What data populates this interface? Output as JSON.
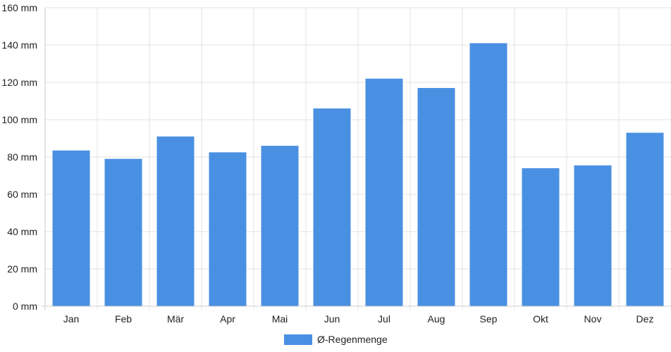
{
  "chart_data": {
    "type": "bar",
    "categories": [
      "Jan",
      "Feb",
      "Mär",
      "Apr",
      "Mai",
      "Jun",
      "Jul",
      "Aug",
      "Sep",
      "Okt",
      "Nov",
      "Dez"
    ],
    "series": [
      {
        "name": "Ø-Regenmenge",
        "color": "#4a90e2",
        "values": [
          83.5,
          79,
          91,
          82.5,
          86,
          106,
          122,
          117,
          141,
          74,
          75.5,
          93
        ]
      }
    ],
    "y_ticks": [
      0,
      20,
      40,
      60,
      80,
      100,
      120,
      140,
      160
    ],
    "y_tick_suffix": " mm",
    "ylim": [
      0,
      160
    ],
    "grid": true,
    "legend_position": "bottom-center"
  }
}
